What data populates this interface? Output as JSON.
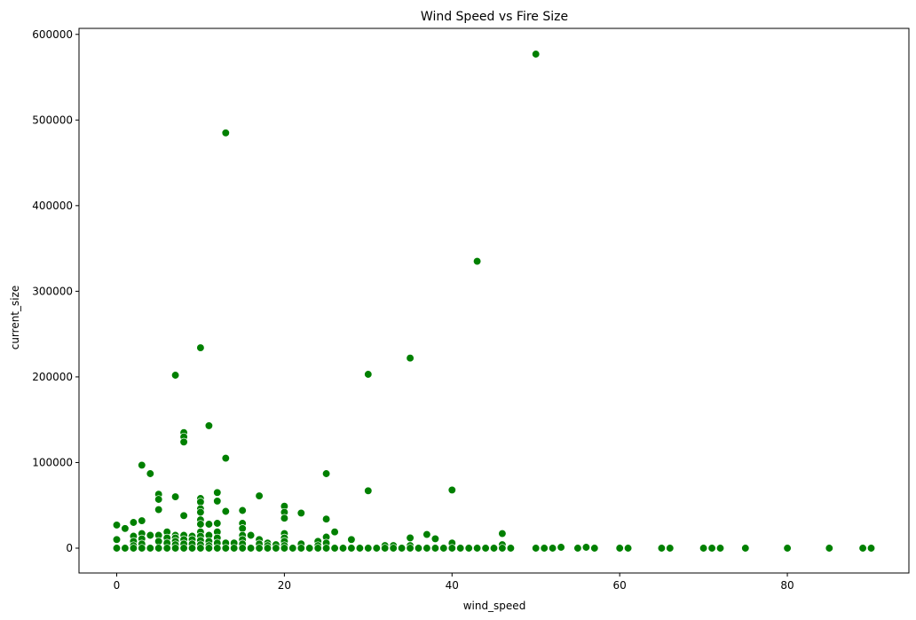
{
  "chart_data": {
    "type": "scatter",
    "title": "Wind Speed vs Fire Size",
    "xlabel": "wind_speed",
    "ylabel": "current_size",
    "xlim": [
      -4.5,
      94.5
    ],
    "ylim": [
      -29000,
      607000
    ],
    "xticks": [
      0,
      20,
      40,
      60,
      80
    ],
    "yticks": [
      0,
      100000,
      200000,
      300000,
      400000,
      500000,
      600000
    ],
    "grid": false,
    "legend": "none",
    "marker_color": "#008000",
    "points": [
      [
        0,
        27000
      ],
      [
        0,
        10000
      ],
      [
        0,
        0
      ],
      [
        1,
        23000
      ],
      [
        1,
        0
      ],
      [
        2,
        30000
      ],
      [
        2,
        14000
      ],
      [
        2,
        8000
      ],
      [
        2,
        3000
      ],
      [
        2,
        0
      ],
      [
        3,
        97000
      ],
      [
        3,
        32000
      ],
      [
        3,
        17000
      ],
      [
        3,
        11000
      ],
      [
        3,
        5000
      ],
      [
        3,
        0
      ],
      [
        4,
        87000
      ],
      [
        4,
        15000
      ],
      [
        4,
        0
      ],
      [
        5,
        63000
      ],
      [
        5,
        57000
      ],
      [
        5,
        45000
      ],
      [
        5,
        15000
      ],
      [
        5,
        8000
      ],
      [
        5,
        0
      ],
      [
        6,
        19000
      ],
      [
        6,
        12000
      ],
      [
        6,
        6000
      ],
      [
        6,
        0
      ],
      [
        7,
        202000
      ],
      [
        7,
        60000
      ],
      [
        7,
        15000
      ],
      [
        7,
        12000
      ],
      [
        7,
        8000
      ],
      [
        7,
        4000
      ],
      [
        7,
        0
      ],
      [
        8,
        135000
      ],
      [
        8,
        130000
      ],
      [
        8,
        124000
      ],
      [
        8,
        38000
      ],
      [
        8,
        15000
      ],
      [
        8,
        10000
      ],
      [
        8,
        5000
      ],
      [
        8,
        0
      ],
      [
        9,
        14000
      ],
      [
        9,
        10000
      ],
      [
        9,
        5000
      ],
      [
        9,
        0
      ],
      [
        10,
        234000
      ],
      [
        10,
        58000
      ],
      [
        10,
        54000
      ],
      [
        10,
        46000
      ],
      [
        10,
        42000
      ],
      [
        10,
        33000
      ],
      [
        10,
        28000
      ],
      [
        10,
        19000
      ],
      [
        10,
        14000
      ],
      [
        10,
        9000
      ],
      [
        10,
        4000
      ],
      [
        10,
        0
      ],
      [
        11,
        143000
      ],
      [
        11,
        28000
      ],
      [
        11,
        15000
      ],
      [
        11,
        8000
      ],
      [
        11,
        3000
      ],
      [
        11,
        0
      ],
      [
        12,
        65000
      ],
      [
        12,
        55000
      ],
      [
        12,
        29000
      ],
      [
        12,
        19000
      ],
      [
        12,
        12000
      ],
      [
        12,
        6000
      ],
      [
        12,
        0
      ],
      [
        13,
        485000
      ],
      [
        13,
        105000
      ],
      [
        13,
        43000
      ],
      [
        13,
        6000
      ],
      [
        13,
        0
      ],
      [
        14,
        6000
      ],
      [
        14,
        0
      ],
      [
        15,
        44000
      ],
      [
        15,
        29000
      ],
      [
        15,
        23000
      ],
      [
        15,
        15000
      ],
      [
        15,
        10000
      ],
      [
        15,
        5000
      ],
      [
        15,
        0
      ],
      [
        16,
        15000
      ],
      [
        16,
        0
      ],
      [
        17,
        61000
      ],
      [
        17,
        10000
      ],
      [
        17,
        5000
      ],
      [
        17,
        0
      ],
      [
        18,
        6000
      ],
      [
        18,
        3000
      ],
      [
        18,
        0
      ],
      [
        19,
        4000
      ],
      [
        19,
        0
      ],
      [
        20,
        49000
      ],
      [
        20,
        42000
      ],
      [
        20,
        35000
      ],
      [
        20,
        17000
      ],
      [
        20,
        12000
      ],
      [
        20,
        8000
      ],
      [
        20,
        3000
      ],
      [
        20,
        0
      ],
      [
        21,
        0
      ],
      [
        22,
        41000
      ],
      [
        22,
        5000
      ],
      [
        22,
        0
      ],
      [
        23,
        0
      ],
      [
        24,
        8000
      ],
      [
        24,
        3000
      ],
      [
        24,
        0
      ],
      [
        25,
        87000
      ],
      [
        25,
        34000
      ],
      [
        25,
        13000
      ],
      [
        25,
        6000
      ],
      [
        25,
        0
      ],
      [
        26,
        19000
      ],
      [
        26,
        0
      ],
      [
        27,
        0
      ],
      [
        28,
        10000
      ],
      [
        28,
        0
      ],
      [
        29,
        0
      ],
      [
        30,
        203000
      ],
      [
        30,
        67000
      ],
      [
        30,
        0
      ],
      [
        31,
        0
      ],
      [
        32,
        3000
      ],
      [
        32,
        0
      ],
      [
        33,
        3000
      ],
      [
        33,
        0
      ],
      [
        34,
        0
      ],
      [
        35,
        222000
      ],
      [
        35,
        12000
      ],
      [
        35,
        3000
      ],
      [
        35,
        0
      ],
      [
        36,
        0
      ],
      [
        37,
        16000
      ],
      [
        37,
        0
      ],
      [
        38,
        11000
      ],
      [
        38,
        0
      ],
      [
        39,
        0
      ],
      [
        40,
        68000
      ],
      [
        40,
        6000
      ],
      [
        40,
        0
      ],
      [
        41,
        0
      ],
      [
        42,
        0
      ],
      [
        43,
        335000
      ],
      [
        43,
        0
      ],
      [
        44,
        0
      ],
      [
        45,
        0
      ],
      [
        46,
        17000
      ],
      [
        46,
        4000
      ],
      [
        46,
        0
      ],
      [
        47,
        0
      ],
      [
        50,
        577000
      ],
      [
        50,
        0
      ],
      [
        51,
        0
      ],
      [
        52,
        0
      ],
      [
        53,
        1000
      ],
      [
        55,
        0
      ],
      [
        56,
        1000
      ],
      [
        57,
        0
      ],
      [
        60,
        0
      ],
      [
        61,
        0
      ],
      [
        65,
        0
      ],
      [
        66,
        0
      ],
      [
        70,
        0
      ],
      [
        71,
        0
      ],
      [
        72,
        0
      ],
      [
        75,
        0
      ],
      [
        80,
        0
      ],
      [
        85,
        0
      ],
      [
        89,
        0
      ],
      [
        90,
        0
      ]
    ]
  }
}
